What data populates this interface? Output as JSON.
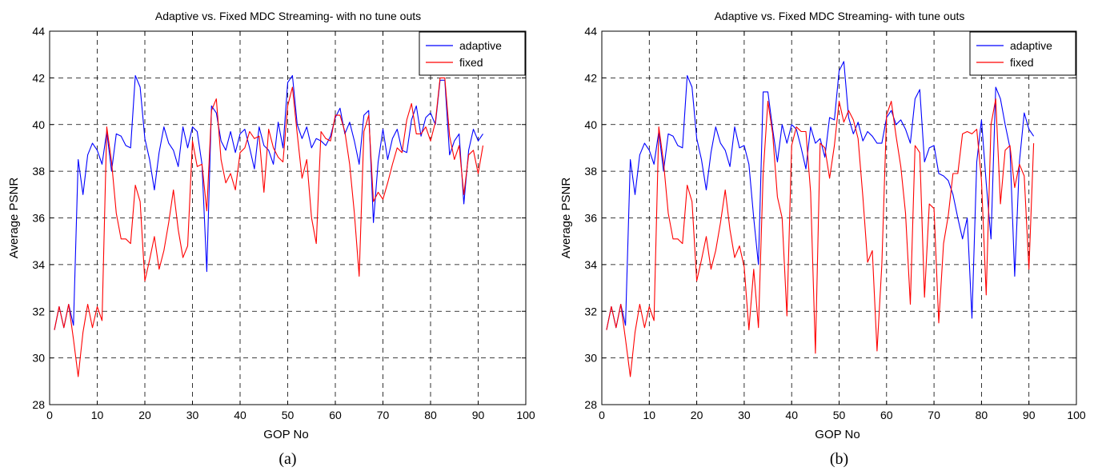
{
  "chart_data": [
    {
      "type": "line",
      "title": "Adaptive vs. Fixed MDC Streaming- with  no tune outs",
      "xlabel": "GOP No",
      "ylabel": "Average PSNR",
      "caption": "(a)",
      "xlim": [
        0,
        100
      ],
      "ylim": [
        28,
        44
      ],
      "xticks": [
        0,
        10,
        20,
        30,
        40,
        50,
        60,
        70,
        80,
        90,
        100
      ],
      "yticks": [
        28,
        30,
        32,
        34,
        36,
        38,
        40,
        42,
        44
      ],
      "grid": true,
      "legend_position": "top-right",
      "series": [
        {
          "name": "adaptive",
          "color": "#0000ff",
          "x": [
            1,
            2,
            3,
            4,
            5,
            6,
            7,
            8,
            9,
            10,
            11,
            12,
            13,
            14,
            15,
            16,
            17,
            18,
            19,
            20,
            21,
            22,
            23,
            24,
            25,
            26,
            27,
            28,
            29,
            30,
            31,
            32,
            33,
            34,
            35,
            36,
            37,
            38,
            39,
            40,
            41,
            42,
            43,
            44,
            45,
            46,
            47,
            48,
            49,
            50,
            51,
            52,
            53,
            54,
            55,
            56,
            57,
            58,
            59,
            60,
            61,
            62,
            63,
            64,
            65,
            66,
            67,
            68,
            69,
            70,
            71,
            72,
            73,
            74,
            75,
            76,
            77,
            78,
            79,
            80,
            81,
            82,
            83,
            84,
            85,
            86,
            87,
            88,
            89,
            90,
            91
          ],
          "values": [
            31.2,
            32.2,
            31.3,
            32.3,
            31.4,
            38.5,
            37.0,
            38.7,
            39.2,
            38.9,
            38.3,
            39.7,
            38.0,
            39.6,
            39.5,
            39.1,
            39.0,
            42.1,
            41.6,
            39.4,
            38.5,
            37.2,
            38.8,
            39.9,
            39.2,
            38.9,
            38.2,
            39.9,
            39.0,
            39.9,
            39.7,
            38.3,
            33.7,
            40.8,
            40.5,
            39.3,
            38.9,
            39.7,
            38.8,
            39.6,
            39.8,
            39.0,
            38.1,
            39.9,
            39.1,
            38.9,
            38.3,
            40.1,
            39.0,
            41.8,
            42.1,
            40.0,
            39.4,
            39.9,
            39.0,
            39.4,
            39.3,
            39.1,
            39.5,
            40.3,
            40.7,
            39.6,
            40.1,
            39.3,
            38.3,
            40.4,
            40.6,
            35.8,
            38.4,
            39.8,
            38.5,
            39.4,
            39.8,
            38.9,
            38.8,
            40.2,
            40.8,
            39.5,
            40.3,
            40.5,
            40.0,
            41.9,
            41.9,
            38.7,
            39.3,
            39.6,
            36.6,
            38.9,
            39.8,
            39.3,
            39.6
          ]
        },
        {
          "name": "fixed",
          "color": "#ff0000",
          "x": [
            1,
            2,
            3,
            4,
            5,
            6,
            7,
            8,
            9,
            10,
            11,
            12,
            13,
            14,
            15,
            16,
            17,
            18,
            19,
            20,
            21,
            22,
            23,
            24,
            25,
            26,
            27,
            28,
            29,
            30,
            31,
            32,
            33,
            34,
            35,
            36,
            37,
            38,
            39,
            40,
            41,
            42,
            43,
            44,
            45,
            46,
            47,
            48,
            49,
            50,
            51,
            52,
            53,
            54,
            55,
            56,
            57,
            58,
            59,
            60,
            61,
            62,
            63,
            64,
            65,
            66,
            67,
            68,
            69,
            70,
            71,
            72,
            73,
            74,
            75,
            76,
            77,
            78,
            79,
            80,
            81,
            82,
            83,
            84,
            85,
            86,
            87,
            88,
            89,
            90,
            91
          ],
          "values": [
            31.2,
            32.2,
            31.3,
            32.3,
            30.8,
            29.2,
            31.1,
            32.3,
            31.3,
            32.2,
            31.6,
            39.9,
            38.4,
            36.2,
            35.1,
            35.1,
            34.9,
            37.4,
            36.7,
            33.3,
            34.2,
            35.2,
            33.8,
            34.6,
            35.8,
            37.2,
            35.5,
            34.3,
            34.8,
            39.3,
            38.2,
            38.3,
            36.3,
            40.6,
            41.1,
            38.5,
            37.5,
            37.9,
            37.2,
            38.8,
            39.0,
            39.7,
            39.4,
            39.5,
            37.1,
            39.8,
            39.0,
            38.6,
            38.4,
            40.8,
            41.6,
            39.6,
            37.7,
            38.5,
            36.0,
            34.9,
            39.7,
            39.4,
            39.3,
            40.4,
            40.4,
            39.7,
            38.3,
            36.2,
            33.5,
            39.7,
            40.4,
            36.7,
            37.1,
            36.8,
            37.5,
            38.3,
            39.0,
            38.8,
            40.2,
            40.9,
            39.6,
            39.6,
            39.9,
            39.3,
            40.1,
            42.0,
            42.0,
            39.5,
            38.5,
            39.1,
            37.0,
            38.7,
            38.9,
            37.9,
            39.1
          ]
        }
      ]
    },
    {
      "type": "line",
      "title": "Adaptive vs. Fixed MDC Streaming- with tune outs",
      "xlabel": "GOP No",
      "ylabel": "Average PSNR",
      "caption": "(b)",
      "xlim": [
        0,
        100
      ],
      "ylim": [
        28,
        44
      ],
      "xticks": [
        0,
        10,
        20,
        30,
        40,
        50,
        60,
        70,
        80,
        90,
        100
      ],
      "yticks": [
        28,
        30,
        32,
        34,
        36,
        38,
        40,
        42,
        44
      ],
      "grid": true,
      "legend_position": "top-right",
      "series": [
        {
          "name": "adaptive",
          "color": "#0000ff",
          "x": [
            1,
            2,
            3,
            4,
            5,
            6,
            7,
            8,
            9,
            10,
            11,
            12,
            13,
            14,
            15,
            16,
            17,
            18,
            19,
            20,
            21,
            22,
            23,
            24,
            25,
            26,
            27,
            28,
            29,
            30,
            31,
            32,
            33,
            34,
            35,
            36,
            37,
            38,
            39,
            40,
            41,
            42,
            43,
            44,
            45,
            46,
            47,
            48,
            49,
            50,
            51,
            52,
            53,
            54,
            55,
            56,
            57,
            58,
            59,
            60,
            61,
            62,
            63,
            64,
            65,
            66,
            67,
            68,
            69,
            70,
            71,
            72,
            73,
            74,
            75,
            76,
            77,
            78,
            79,
            80,
            81,
            82,
            83,
            84,
            85,
            86,
            87,
            88,
            89,
            90,
            91
          ],
          "values": [
            31.2,
            32.2,
            31.3,
            32.3,
            31.4,
            38.5,
            37.0,
            38.7,
            39.2,
            38.9,
            38.3,
            39.7,
            38.0,
            39.6,
            39.5,
            39.1,
            39.0,
            42.1,
            41.6,
            39.4,
            38.5,
            37.2,
            38.8,
            39.9,
            39.2,
            38.9,
            38.2,
            39.9,
            39.0,
            39.1,
            38.3,
            36.0,
            34.0,
            41.4,
            41.4,
            39.8,
            38.4,
            40.0,
            39.2,
            40.0,
            39.8,
            39.0,
            38.1,
            39.9,
            39.2,
            39.4,
            38.6,
            40.3,
            40.2,
            42.3,
            42.7,
            40.3,
            39.6,
            40.1,
            39.3,
            39.7,
            39.5,
            39.2,
            39.2,
            40.3,
            40.6,
            40.0,
            40.2,
            39.8,
            39.2,
            41.1,
            41.5,
            38.4,
            39.0,
            39.1,
            37.9,
            37.8,
            37.6,
            37.0,
            36.0,
            35.1,
            36.0,
            31.7,
            38.4,
            40.2,
            37.5,
            35.1,
            41.6,
            41.1,
            40.0,
            39.0,
            33.5,
            38.4,
            40.5,
            39.8,
            39.5
          ]
        },
        {
          "name": "fixed",
          "color": "#ff0000",
          "x": [
            1,
            2,
            3,
            4,
            5,
            6,
            7,
            8,
            9,
            10,
            11,
            12,
            13,
            14,
            15,
            16,
            17,
            18,
            19,
            20,
            21,
            22,
            23,
            24,
            25,
            26,
            27,
            28,
            29,
            30,
            31,
            32,
            33,
            34,
            35,
            36,
            37,
            38,
            39,
            40,
            41,
            42,
            43,
            44,
            45,
            46,
            47,
            48,
            49,
            50,
            51,
            52,
            53,
            54,
            55,
            56,
            57,
            58,
            59,
            60,
            61,
            62,
            63,
            64,
            65,
            66,
            67,
            68,
            69,
            70,
            71,
            72,
            73,
            74,
            75,
            76,
            77,
            78,
            79,
            80,
            81,
            82,
            83,
            84,
            85,
            86,
            87,
            88,
            89,
            90,
            91
          ],
          "values": [
            31.2,
            32.2,
            31.3,
            32.3,
            30.8,
            29.2,
            31.1,
            32.3,
            31.3,
            32.2,
            31.6,
            39.9,
            38.4,
            36.2,
            35.1,
            35.1,
            34.9,
            37.4,
            36.7,
            33.3,
            34.2,
            35.2,
            33.8,
            34.6,
            35.8,
            37.2,
            35.5,
            34.3,
            34.8,
            33.9,
            31.2,
            33.8,
            31.3,
            37.9,
            41.0,
            39.6,
            36.9,
            36.0,
            31.8,
            39.1,
            39.9,
            39.7,
            39.7,
            37.1,
            30.2,
            39.2,
            39.0,
            37.7,
            39.1,
            41.0,
            40.1,
            40.6,
            40.2,
            39.4,
            36.9,
            34.1,
            34.6,
            30.3,
            34.0,
            40.4,
            41.0,
            39.5,
            38.2,
            36.2,
            32.3,
            39.1,
            38.8,
            32.6,
            36.6,
            36.4,
            31.5,
            34.9,
            36.1,
            37.9,
            37.9,
            39.6,
            39.7,
            39.6,
            39.8,
            37.6,
            32.7,
            40.0,
            41.1,
            36.6,
            38.9,
            39.1,
            37.3,
            38.3,
            37.8,
            33.8,
            39.2
          ]
        }
      ]
    }
  ]
}
